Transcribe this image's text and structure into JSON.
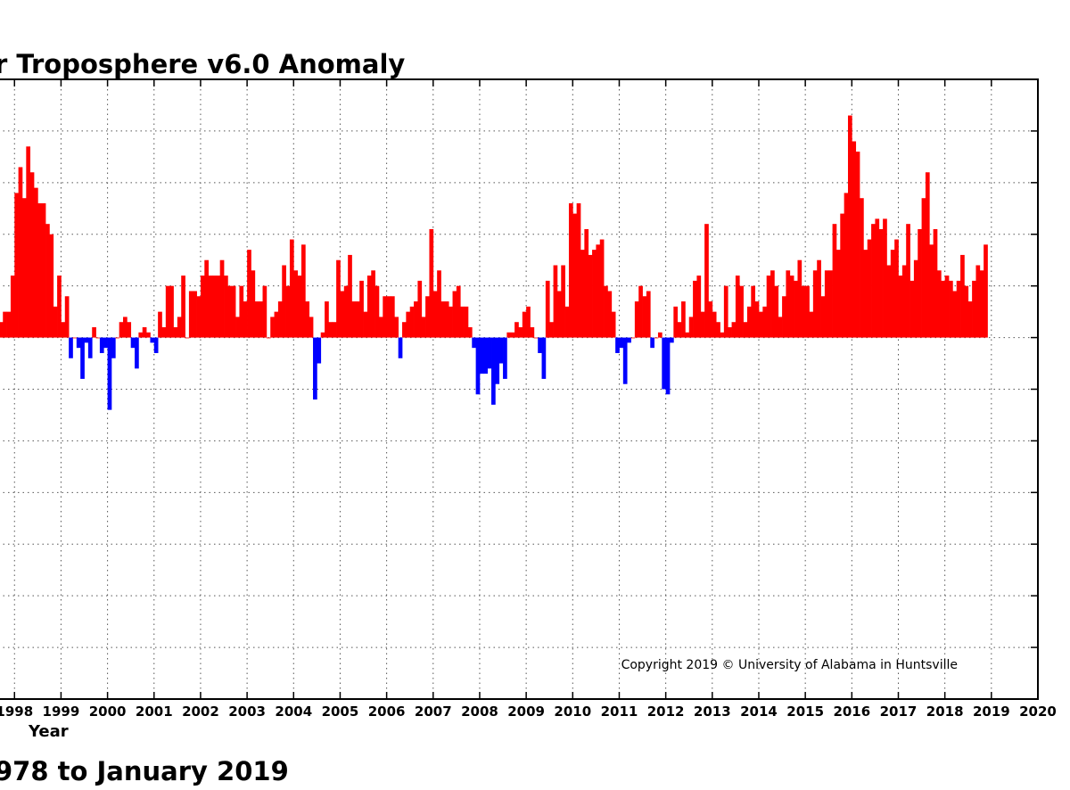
{
  "chart_data": {
    "type": "bar",
    "title": "r Troposphere v6.0 Anomaly",
    "subtitle": "978 to January 2019",
    "xlabel": "Year",
    "ylabel": "",
    "copyright": "Copyright 2019 © University of Alabama in Huntsville",
    "grid": true,
    "xlim": [
      1997.65,
      2020.0
    ],
    "ylim": [
      -0.7,
      0.5
    ],
    "x_ticks": [
      "1998",
      "1999",
      "2000",
      "2001",
      "2002",
      "2003",
      "2004",
      "2005",
      "2006",
      "2007",
      "2008",
      "2009",
      "2010",
      "2011",
      "2012",
      "2013",
      "2014",
      "2015",
      "2016",
      "2017",
      "2018",
      "2019",
      "2020"
    ],
    "positive_color": "#ff0000",
    "negative_color": "#0000ff",
    "start_year": 1997.667,
    "values": [
      0.03,
      0.05,
      0.05,
      0.12,
      0.28,
      0.33,
      0.27,
      0.37,
      0.32,
      0.29,
      0.26,
      0.26,
      0.22,
      0.2,
      0.06,
      0.12,
      0.03,
      0.08,
      -0.04,
      0.0,
      -0.02,
      -0.08,
      -0.01,
      -0.04,
      0.02,
      0.0,
      -0.03,
      -0.02,
      -0.14,
      -0.04,
      0.0,
      0.03,
      0.04,
      0.03,
      -0.02,
      -0.06,
      0.01,
      0.02,
      0.01,
      -0.01,
      -0.03,
      0.05,
      0.02,
      0.1,
      0.1,
      0.02,
      0.04,
      0.12,
      0.0,
      0.09,
      0.09,
      0.08,
      0.12,
      0.15,
      0.12,
      0.12,
      0.12,
      0.15,
      0.12,
      0.1,
      0.1,
      0.04,
      0.1,
      0.07,
      0.17,
      0.13,
      0.07,
      0.07,
      0.1,
      0.0,
      0.04,
      0.05,
      0.07,
      0.14,
      0.1,
      0.19,
      0.13,
      0.12,
      0.18,
      0.07,
      0.04,
      -0.12,
      -0.05,
      0.01,
      0.07,
      0.03,
      0.03,
      0.15,
      0.09,
      0.1,
      0.16,
      0.07,
      0.07,
      0.11,
      0.05,
      0.12,
      0.13,
      0.1,
      0.04,
      0.08,
      0.08,
      0.08,
      0.04,
      -0.04,
      0.03,
      0.05,
      0.06,
      0.07,
      0.11,
      0.04,
      0.08,
      0.21,
      0.09,
      0.13,
      0.07,
      0.07,
      0.06,
      0.09,
      0.1,
      0.06,
      0.06,
      0.02,
      -0.02,
      -0.11,
      -0.07,
      -0.07,
      -0.06,
      -0.13,
      -0.09,
      -0.05,
      -0.08,
      0.01,
      0.01,
      0.03,
      0.02,
      0.05,
      0.06,
      0.02,
      0.0,
      -0.03,
      -0.08,
      0.11,
      0.03,
      0.14,
      0.09,
      0.14,
      0.06,
      0.26,
      0.24,
      0.26,
      0.17,
      0.21,
      0.16,
      0.17,
      0.18,
      0.19,
      0.1,
      0.09,
      0.05,
      -0.03,
      -0.02,
      -0.09,
      -0.01,
      0.0,
      0.07,
      0.1,
      0.08,
      0.09,
      -0.02,
      0.0,
      0.01,
      -0.1,
      -0.11,
      -0.01,
      0.06,
      0.03,
      0.07,
      0.01,
      0.04,
      0.11,
      0.12,
      0.05,
      0.22,
      0.07,
      0.05,
      0.03,
      0.01,
      0.1,
      0.02,
      0.03,
      0.12,
      0.1,
      0.03,
      0.06,
      0.1,
      0.07,
      0.05,
      0.06,
      0.12,
      0.13,
      0.1,
      0.04,
      0.08,
      0.13,
      0.12,
      0.11,
      0.15,
      0.1,
      0.1,
      0.05,
      0.13,
      0.15,
      0.08,
      0.13,
      0.13,
      0.22,
      0.17,
      0.24,
      0.28,
      0.43,
      0.38,
      0.36,
      0.27,
      0.17,
      0.19,
      0.22,
      0.23,
      0.21,
      0.23,
      0.14,
      0.17,
      0.19,
      0.12,
      0.14,
      0.22,
      0.11,
      0.15,
      0.21,
      0.27,
      0.32,
      0.18,
      0.21,
      0.13,
      0.11,
      0.12,
      0.11,
      0.09,
      0.11,
      0.16,
      0.1,
      0.07,
      0.11,
      0.14,
      0.13,
      0.18
    ]
  }
}
